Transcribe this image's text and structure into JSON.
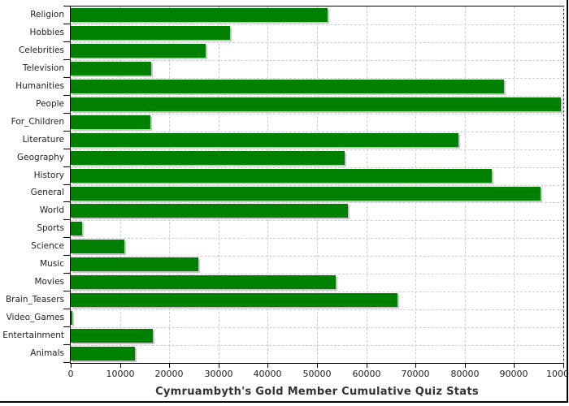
{
  "title": "Cymruambyth's Gold Member Cumulative Quiz Stats",
  "colors": {
    "bar": "#008000",
    "bar_shadow": "#c6c6c6",
    "grid": "#cfcfcf",
    "plot_border": "#000000",
    "text": "#222222",
    "title_text": "#333333",
    "background": "#ffffff"
  },
  "chart_data": {
    "type": "bar",
    "orientation": "horizontal",
    "title": "Cymruambyth's Gold Member Cumulative Quiz Stats",
    "xlabel": "",
    "ylabel": "",
    "xlim": [
      0,
      100000
    ],
    "x_ticks": [
      0,
      10000,
      20000,
      30000,
      40000,
      50000,
      60000,
      70000,
      80000,
      90000,
      100000
    ],
    "x_tick_labels": [
      "0",
      "10000",
      "20000",
      "30000",
      "40000",
      "50000",
      "60000",
      "70000",
      "80000",
      "90000",
      "100000"
    ],
    "grid": "dashed-both-axes",
    "legend": "none",
    "categories": [
      "Religion",
      "Hobbies",
      "Celebrities",
      "Television",
      "Humanities",
      "People",
      "For_Children",
      "Literature",
      "Geography",
      "History",
      "General",
      "World",
      "Sports",
      "Science",
      "Music",
      "Movies",
      "Brain_Teasers",
      "Video_Games",
      "Entertainment",
      "Animals"
    ],
    "values": [
      52200,
      32400,
      27400,
      16300,
      87900,
      99500,
      16200,
      78700,
      55600,
      85400,
      95300,
      56300,
      2300,
      10900,
      25900,
      53800,
      66300,
      300,
      16600,
      13000
    ]
  }
}
